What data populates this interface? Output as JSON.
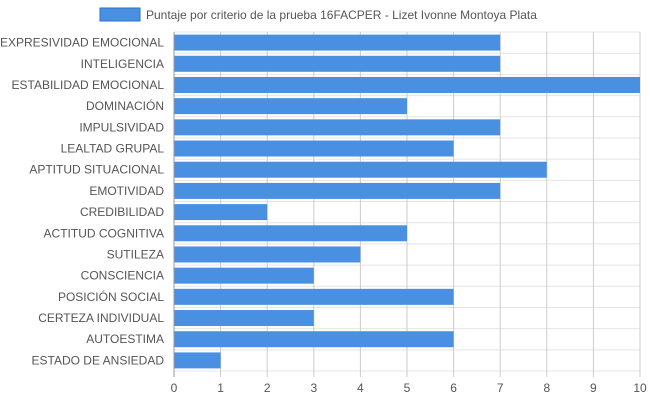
{
  "chart_data": {
    "type": "bar",
    "orientation": "horizontal",
    "categories": [
      "EXPRESIVIDAD EMOCIONAL",
      "INTELIGENCIA",
      "ESTABILIDAD EMOCIONAL",
      "DOMINACIÓN",
      "IMPULSIVIDAD",
      "LEALTAD GRUPAL",
      "APTITUD SITUACIONAL",
      "EMOTIVIDAD",
      "CREDIBILIDAD",
      "ACTITUD COGNITIVA",
      "SUTILEZA",
      "CONSCIENCIA",
      "POSICIÓN SOCIAL",
      "CERTEZA INDIVIDUAL",
      "AUTOESTIMA",
      "ESTADO DE ANSIEDAD"
    ],
    "series": [
      {
        "name": "Puntaje por criterio de la prueba 16FACPER - Lizet Ivonne Montoya Plata",
        "values": [
          7,
          7,
          10,
          5,
          7,
          6,
          8,
          7,
          2,
          5,
          4,
          3,
          6,
          3,
          6,
          1
        ],
        "color": "#4a90e2",
        "border_color": "#ffffff"
      }
    ],
    "xlim": [
      0,
      10
    ],
    "x_ticks": [
      0,
      1,
      2,
      3,
      4,
      5,
      6,
      7,
      8,
      9,
      10
    ],
    "grid": true,
    "legend_position": "top-center",
    "title": "",
    "xlabel": "",
    "ylabel": ""
  },
  "colors": {
    "bar": "#4a90e2",
    "grid": "#cccccc",
    "text": "#555555"
  }
}
